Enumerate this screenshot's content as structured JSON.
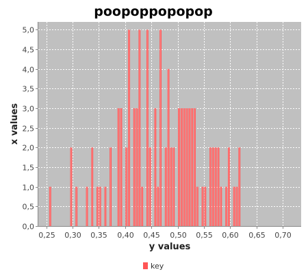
{
  "chart_data": {
    "type": "bar",
    "title": "poopoppopopop",
    "xlabel": "y values",
    "ylabel": "x values",
    "xlim": [
      0.235,
      0.735
    ],
    "ylim": [
      0,
      5.2
    ],
    "bin_width": 0.005,
    "grid": true,
    "legend_position": "bottom",
    "x_ticks": [
      "0,25",
      "0,30",
      "0,35",
      "0,40",
      "0,45",
      "0,50",
      "0,55",
      "0,60",
      "0,65",
      "0,70"
    ],
    "x_tick_values": [
      0.25,
      0.3,
      0.35,
      0.4,
      0.45,
      0.5,
      0.55,
      0.6,
      0.65,
      0.7
    ],
    "y_ticks": [
      "0,0",
      "0,5",
      "1,0",
      "1,5",
      "2,0",
      "2,5",
      "3,0",
      "3,5",
      "4,0",
      "4,5",
      "5,0"
    ],
    "y_tick_values": [
      0,
      0.5,
      1,
      1.5,
      2,
      2.5,
      3,
      3.5,
      4,
      4.5,
      5
    ],
    "series": [
      {
        "name": "key",
        "color": "#ff5555",
        "points": [
          {
            "x": 0.2575,
            "y": 1
          },
          {
            "x": 0.2975,
            "y": 2
          },
          {
            "x": 0.3075,
            "y": 1
          },
          {
            "x": 0.3275,
            "y": 1
          },
          {
            "x": 0.3375,
            "y": 2
          },
          {
            "x": 0.3475,
            "y": 1
          },
          {
            "x": 0.3525,
            "y": 1
          },
          {
            "x": 0.3625,
            "y": 1
          },
          {
            "x": 0.3725,
            "y": 2
          },
          {
            "x": 0.3875,
            "y": 3
          },
          {
            "x": 0.3925,
            "y": 3
          },
          {
            "x": 0.4025,
            "y": 2
          },
          {
            "x": 0.4075,
            "y": 5
          },
          {
            "x": 0.4175,
            "y": 3
          },
          {
            "x": 0.4225,
            "y": 3
          },
          {
            "x": 0.4275,
            "y": 5
          },
          {
            "x": 0.4325,
            "y": 1
          },
          {
            "x": 0.4425,
            "y": 5
          },
          {
            "x": 0.4475,
            "y": 2
          },
          {
            "x": 0.4575,
            "y": 3
          },
          {
            "x": 0.4625,
            "y": 1
          },
          {
            "x": 0.4675,
            "y": 5
          },
          {
            "x": 0.4775,
            "y": 2
          },
          {
            "x": 0.4825,
            "y": 4
          },
          {
            "x": 0.4875,
            "y": 2
          },
          {
            "x": 0.4925,
            "y": 2
          },
          {
            "x": 0.5025,
            "y": 3
          },
          {
            "x": 0.5075,
            "y": 3
          },
          {
            "x": 0.5125,
            "y": 3
          },
          {
            "x": 0.5175,
            "y": 3
          },
          {
            "x": 0.5225,
            "y": 3
          },
          {
            "x": 0.5275,
            "y": 3
          },
          {
            "x": 0.5325,
            "y": 3
          },
          {
            "x": 0.5375,
            "y": 1
          },
          {
            "x": 0.5475,
            "y": 1
          },
          {
            "x": 0.5525,
            "y": 1
          },
          {
            "x": 0.5625,
            "y": 2
          },
          {
            "x": 0.5675,
            "y": 2
          },
          {
            "x": 0.5725,
            "y": 2
          },
          {
            "x": 0.5775,
            "y": 2
          },
          {
            "x": 0.5825,
            "y": 1
          },
          {
            "x": 0.5925,
            "y": 1
          },
          {
            "x": 0.5975,
            "y": 2
          },
          {
            "x": 0.6075,
            "y": 1
          },
          {
            "x": 0.6125,
            "y": 1
          },
          {
            "x": 0.6175,
            "y": 2
          }
        ]
      }
    ]
  }
}
